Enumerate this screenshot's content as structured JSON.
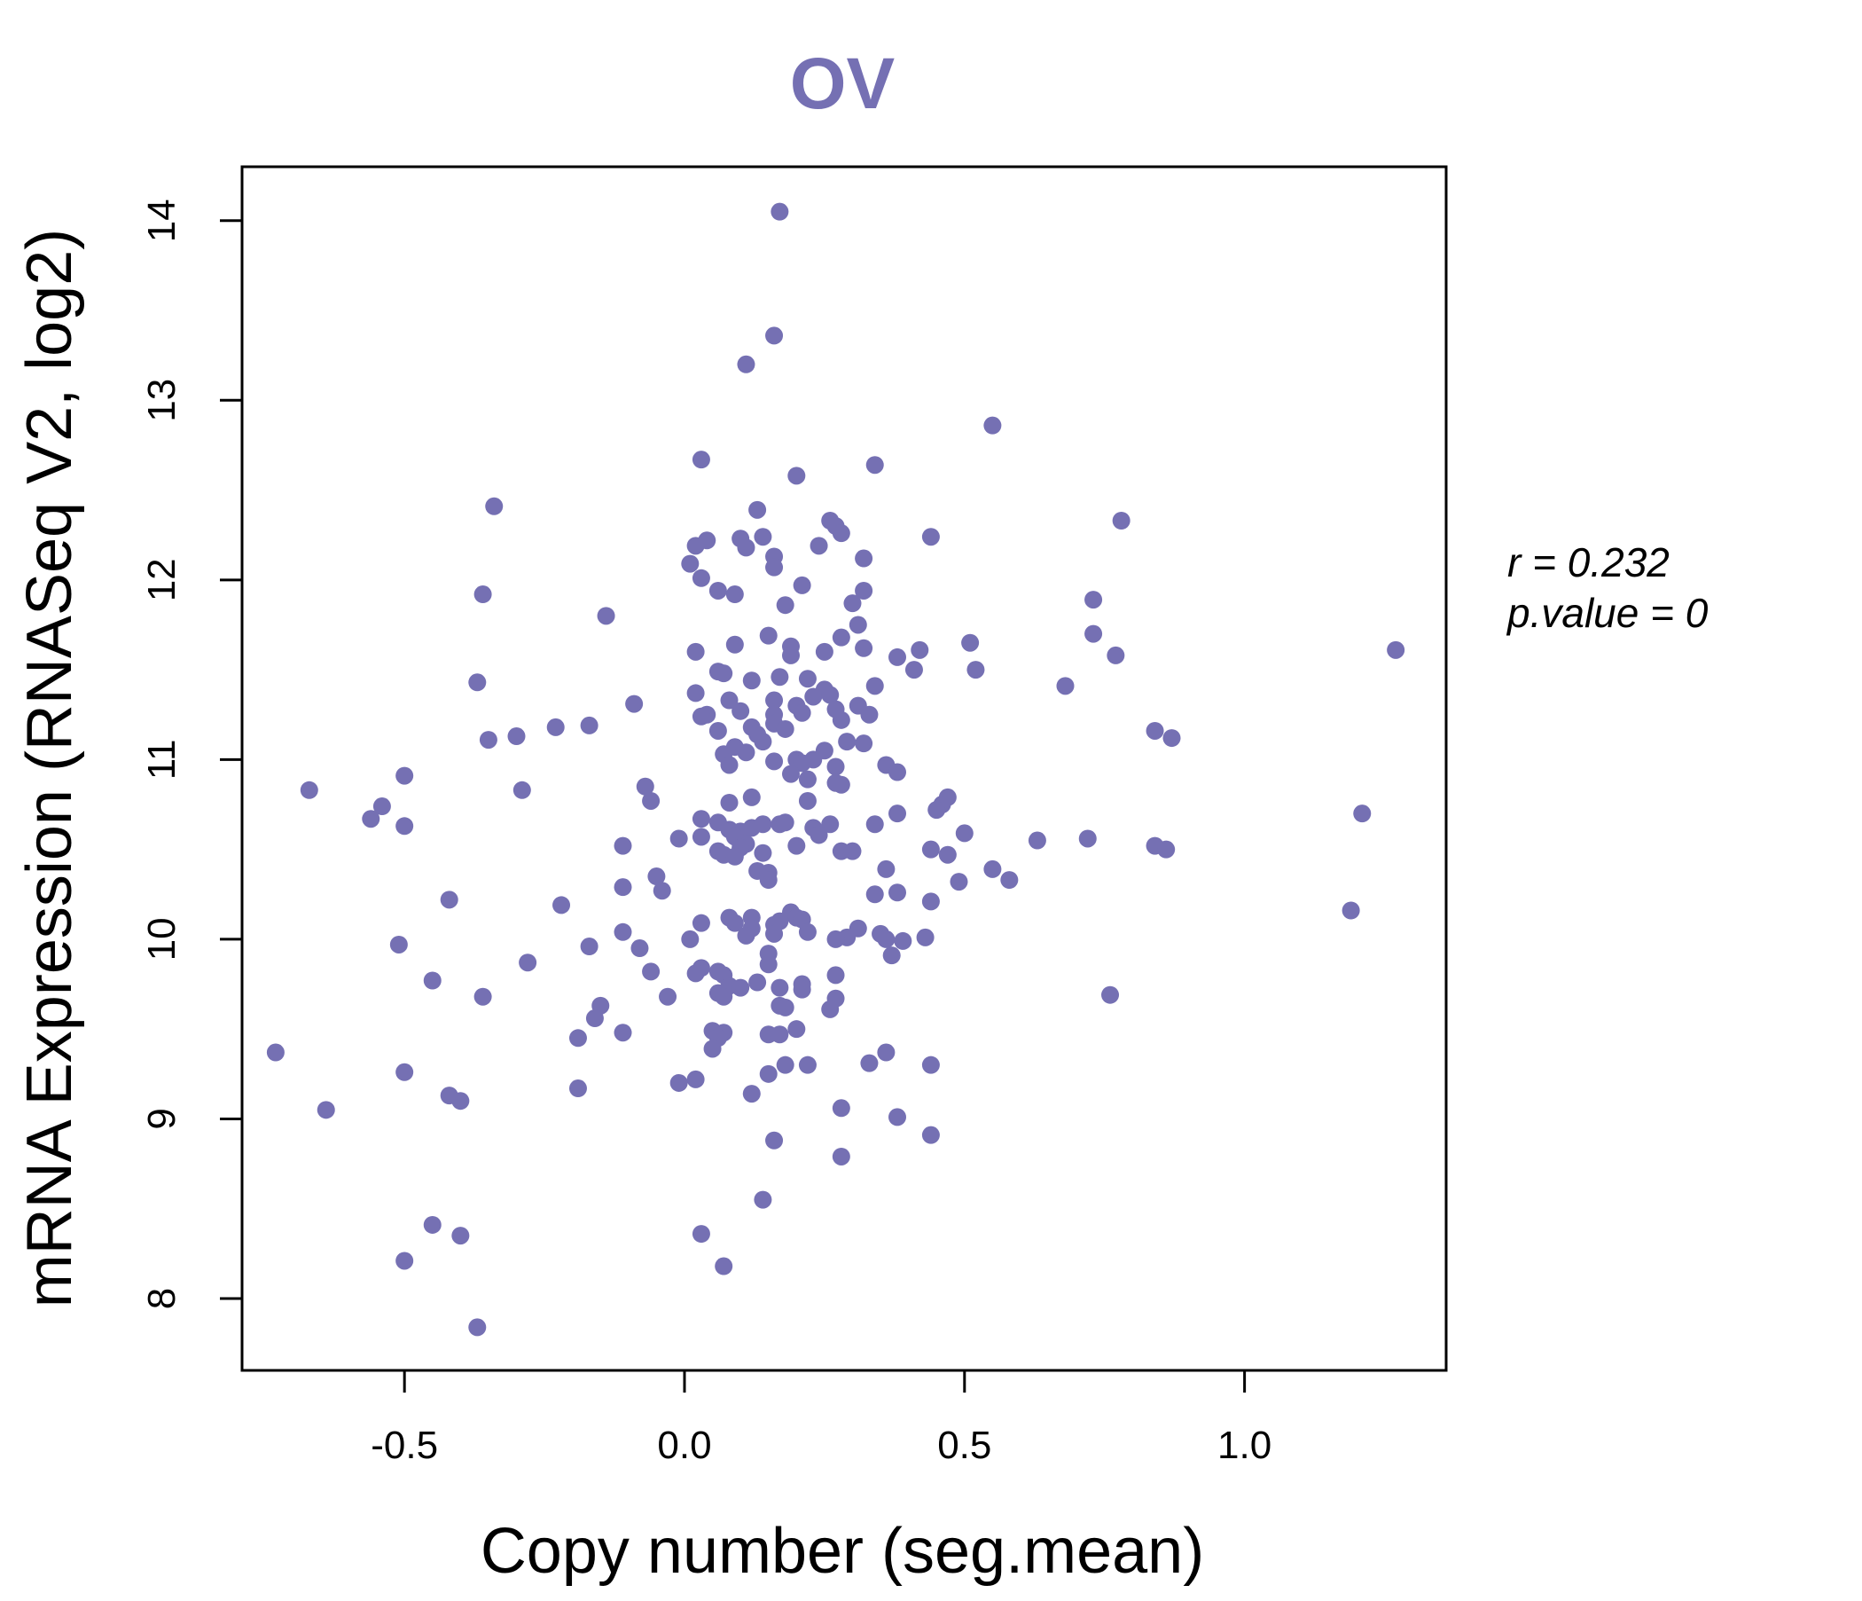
{
  "chart_data": {
    "type": "scatter",
    "title": "OV",
    "xlabel": "Copy number (seg.mean)",
    "ylabel": "mRNA Expression (RNASeq V2, log2)",
    "xlim": [
      -0.79,
      1.36
    ],
    "ylim": [
      7.6,
      14.3
    ],
    "x_ticks": [
      "-0.5",
      "0.0",
      "0.5",
      "1.0"
    ],
    "y_ticks": [
      "8",
      "9",
      "10",
      "11",
      "12",
      "13",
      "14"
    ],
    "grid": false,
    "legend": "none",
    "annotations": {
      "r": "r = 0.232",
      "p": "p.value = 0"
    },
    "colors": {
      "point": "#7570b3",
      "title": "#7570b3",
      "axis": "#000000"
    },
    "points": [
      {
        "x": 0.17,
        "y": 14.05
      },
      {
        "x": 0.16,
        "y": 13.36
      },
      {
        "x": 0.11,
        "y": 13.2
      },
      {
        "x": 0.55,
        "y": 12.86
      },
      {
        "x": 0.03,
        "y": 12.67
      },
      {
        "x": 0.34,
        "y": 12.64
      },
      {
        "x": 0.2,
        "y": 12.58
      },
      {
        "x": -0.34,
        "y": 12.41
      },
      {
        "x": 0.13,
        "y": 12.39
      },
      {
        "x": 0.26,
        "y": 12.33
      },
      {
        "x": 0.78,
        "y": 12.33
      },
      {
        "x": 0.27,
        "y": 12.3
      },
      {
        "x": 0.28,
        "y": 12.26
      },
      {
        "x": 0.14,
        "y": 12.24
      },
      {
        "x": 0.44,
        "y": 12.24
      },
      {
        "x": 0.04,
        "y": 12.22
      },
      {
        "x": 0.1,
        "y": 12.23
      },
      {
        "x": 0.02,
        "y": 12.19
      },
      {
        "x": 0.24,
        "y": 12.19
      },
      {
        "x": 0.11,
        "y": 12.18
      },
      {
        "x": 0.16,
        "y": 12.13
      },
      {
        "x": 0.32,
        "y": 12.12
      },
      {
        "x": 0.01,
        "y": 12.09
      },
      {
        "x": 0.16,
        "y": 12.07
      },
      {
        "x": 0.03,
        "y": 12.01
      },
      {
        "x": 0.21,
        "y": 11.97
      },
      {
        "x": 0.06,
        "y": 11.94
      },
      {
        "x": 0.32,
        "y": 11.94
      },
      {
        "x": -0.36,
        "y": 11.92
      },
      {
        "x": 0.09,
        "y": 11.92
      },
      {
        "x": 0.73,
        "y": 11.89
      },
      {
        "x": 0.3,
        "y": 11.87
      },
      {
        "x": 0.18,
        "y": 11.86
      },
      {
        "x": -0.14,
        "y": 11.8
      },
      {
        "x": 0.31,
        "y": 11.75
      },
      {
        "x": 0.73,
        "y": 11.7
      },
      {
        "x": 0.15,
        "y": 11.69
      },
      {
        "x": 0.28,
        "y": 11.68
      },
      {
        "x": 0.51,
        "y": 11.65
      },
      {
        "x": 0.09,
        "y": 11.64
      },
      {
        "x": 0.19,
        "y": 11.63
      },
      {
        "x": 0.32,
        "y": 11.62
      },
      {
        "x": 0.42,
        "y": 11.61
      },
      {
        "x": 0.02,
        "y": 11.6
      },
      {
        "x": 0.25,
        "y": 11.6
      },
      {
        "x": 1.27,
        "y": 11.61
      },
      {
        "x": 0.19,
        "y": 11.58
      },
      {
        "x": 0.38,
        "y": 11.57
      },
      {
        "x": 0.77,
        "y": 11.58
      },
      {
        "x": 0.52,
        "y": 11.5
      },
      {
        "x": 0.41,
        "y": 11.5
      },
      {
        "x": 0.06,
        "y": 11.49
      },
      {
        "x": 0.07,
        "y": 11.48
      },
      {
        "x": 0.17,
        "y": 11.46
      },
      {
        "x": 0.12,
        "y": 11.44
      },
      {
        "x": 0.22,
        "y": 11.45
      },
      {
        "x": -0.37,
        "y": 11.43
      },
      {
        "x": 0.34,
        "y": 11.41
      },
      {
        "x": 0.68,
        "y": 11.41
      },
      {
        "x": 0.25,
        "y": 11.39
      },
      {
        "x": 0.02,
        "y": 11.37
      },
      {
        "x": 0.23,
        "y": 11.35
      },
      {
        "x": 0.26,
        "y": 11.36
      },
      {
        "x": 0.16,
        "y": 11.33
      },
      {
        "x": 0.08,
        "y": 11.33
      },
      {
        "x": -0.09,
        "y": 11.31
      },
      {
        "x": 0.2,
        "y": 11.3
      },
      {
        "x": 0.31,
        "y": 11.3
      },
      {
        "x": 0.27,
        "y": 11.28
      },
      {
        "x": 0.1,
        "y": 11.27
      },
      {
        "x": 0.04,
        "y": 11.25
      },
      {
        "x": 0.03,
        "y": 11.24
      },
      {
        "x": 0.16,
        "y": 11.25
      },
      {
        "x": 0.21,
        "y": 11.26
      },
      {
        "x": 0.33,
        "y": 11.25
      },
      {
        "x": 0.28,
        "y": 11.22
      },
      {
        "x": 0.16,
        "y": 11.2
      },
      {
        "x": 0.12,
        "y": 11.18
      },
      {
        "x": 0.18,
        "y": 11.17
      },
      {
        "x": -0.23,
        "y": 11.18
      },
      {
        "x": -0.17,
        "y": 11.19
      },
      {
        "x": 0.06,
        "y": 11.16
      },
      {
        "x": 0.84,
        "y": 11.16
      },
      {
        "x": 0.13,
        "y": 11.14
      },
      {
        "x": -0.3,
        "y": 11.13
      },
      {
        "x": 0.87,
        "y": 11.12
      },
      {
        "x": -0.35,
        "y": 11.11
      },
      {
        "x": 0.29,
        "y": 11.1
      },
      {
        "x": 0.14,
        "y": 11.1
      },
      {
        "x": 0.32,
        "y": 11.09
      },
      {
        "x": 0.09,
        "y": 11.07
      },
      {
        "x": 0.25,
        "y": 11.05
      },
      {
        "x": 0.07,
        "y": 11.03
      },
      {
        "x": 0.11,
        "y": 11.04
      },
      {
        "x": 0.2,
        "y": 11.0
      },
      {
        "x": 0.23,
        "y": 11.0
      },
      {
        "x": 0.16,
        "y": 10.99
      },
      {
        "x": 0.21,
        "y": 10.98
      },
      {
        "x": 0.08,
        "y": 10.97
      },
      {
        "x": 0.36,
        "y": 10.97
      },
      {
        "x": 0.27,
        "y": 10.96
      },
      {
        "x": 0.38,
        "y": 10.93
      },
      {
        "x": 0.19,
        "y": 10.92
      },
      {
        "x": -0.5,
        "y": 10.91
      },
      {
        "x": 0.22,
        "y": 10.89
      },
      {
        "x": 0.27,
        "y": 10.87
      },
      {
        "x": 0.28,
        "y": 10.86
      },
      {
        "x": -0.07,
        "y": 10.85
      },
      {
        "x": -0.67,
        "y": 10.83
      },
      {
        "x": -0.29,
        "y": 10.83
      },
      {
        "x": 0.12,
        "y": 10.79
      },
      {
        "x": 0.47,
        "y": 10.79
      },
      {
        "x": 0.22,
        "y": 10.77
      },
      {
        "x": -0.06,
        "y": 10.77
      },
      {
        "x": 0.08,
        "y": 10.76
      },
      {
        "x": 0.46,
        "y": 10.75
      },
      {
        "x": -0.54,
        "y": 10.74
      },
      {
        "x": 0.45,
        "y": 10.72
      },
      {
        "x": 1.21,
        "y": 10.7
      },
      {
        "x": 0.38,
        "y": 10.7
      },
      {
        "x": 0.03,
        "y": 10.67
      },
      {
        "x": -0.56,
        "y": 10.67
      },
      {
        "x": 0.06,
        "y": 10.65
      },
      {
        "x": 0.14,
        "y": 10.64
      },
      {
        "x": 0.17,
        "y": 10.64
      },
      {
        "x": 0.18,
        "y": 10.65
      },
      {
        "x": 0.26,
        "y": 10.64
      },
      {
        "x": 0.34,
        "y": 10.64
      },
      {
        "x": -0.5,
        "y": 10.63
      },
      {
        "x": 0.12,
        "y": 10.62
      },
      {
        "x": 0.23,
        "y": 10.62
      },
      {
        "x": 0.08,
        "y": 10.61
      },
      {
        "x": 0.1,
        "y": 10.6
      },
      {
        "x": 0.5,
        "y": 10.59
      },
      {
        "x": 0.24,
        "y": 10.58
      },
      {
        "x": 0.09,
        "y": 10.57
      },
      {
        "x": 0.03,
        "y": 10.57
      },
      {
        "x": 0.72,
        "y": 10.56
      },
      {
        "x": -0.01,
        "y": 10.56
      },
      {
        "x": 0.63,
        "y": 10.55
      },
      {
        "x": 0.11,
        "y": 10.53
      },
      {
        "x": -0.11,
        "y": 10.52
      },
      {
        "x": 0.2,
        "y": 10.52
      },
      {
        "x": 0.84,
        "y": 10.52
      },
      {
        "x": 0.1,
        "y": 10.51
      },
      {
        "x": 0.86,
        "y": 10.5
      },
      {
        "x": 0.44,
        "y": 10.5
      },
      {
        "x": 0.06,
        "y": 10.49
      },
      {
        "x": 0.28,
        "y": 10.49
      },
      {
        "x": 0.3,
        "y": 10.49
      },
      {
        "x": 0.14,
        "y": 10.48
      },
      {
        "x": 0.07,
        "y": 10.47
      },
      {
        "x": 0.47,
        "y": 10.47
      },
      {
        "x": 0.09,
        "y": 10.46
      },
      {
        "x": 0.36,
        "y": 10.39
      },
      {
        "x": 0.55,
        "y": 10.39
      },
      {
        "x": 0.13,
        "y": 10.38
      },
      {
        "x": 0.15,
        "y": 10.37
      },
      {
        "x": -0.05,
        "y": 10.35
      },
      {
        "x": 0.15,
        "y": 10.33
      },
      {
        "x": 0.58,
        "y": 10.33
      },
      {
        "x": 0.49,
        "y": 10.32
      },
      {
        "x": -0.11,
        "y": 10.29
      },
      {
        "x": -0.04,
        "y": 10.27
      },
      {
        "x": 0.38,
        "y": 10.26
      },
      {
        "x": 0.34,
        "y": 10.25
      },
      {
        "x": 0.44,
        "y": 10.21
      },
      {
        "x": -0.42,
        "y": 10.22
      },
      {
        "x": -0.22,
        "y": 10.19
      },
      {
        "x": 1.19,
        "y": 10.16
      },
      {
        "x": 0.19,
        "y": 10.15
      },
      {
        "x": 0.08,
        "y": 10.12
      },
      {
        "x": 0.12,
        "y": 10.12
      },
      {
        "x": 0.2,
        "y": 10.12
      },
      {
        "x": 0.21,
        "y": 10.11
      },
      {
        "x": 0.17,
        "y": 10.1
      },
      {
        "x": 0.16,
        "y": 10.08
      },
      {
        "x": 0.03,
        "y": 10.09
      },
      {
        "x": 0.09,
        "y": 10.09
      },
      {
        "x": 0.12,
        "y": 10.06
      },
      {
        "x": 0.31,
        "y": 10.06
      },
      {
        "x": -0.11,
        "y": 10.04
      },
      {
        "x": 0.22,
        "y": 10.04
      },
      {
        "x": 0.16,
        "y": 10.03
      },
      {
        "x": 0.35,
        "y": 10.03
      },
      {
        "x": 0.11,
        "y": 10.02
      },
      {
        "x": 0.29,
        "y": 10.01
      },
      {
        "x": 0.01,
        "y": 10.0
      },
      {
        "x": 0.27,
        "y": 10.0
      },
      {
        "x": 0.36,
        "y": 10.0
      },
      {
        "x": 0.39,
        "y": 9.99
      },
      {
        "x": 0.43,
        "y": 10.01
      },
      {
        "x": -0.51,
        "y": 9.97
      },
      {
        "x": -0.17,
        "y": 9.96
      },
      {
        "x": -0.08,
        "y": 9.95
      },
      {
        "x": 0.15,
        "y": 9.92
      },
      {
        "x": 0.37,
        "y": 9.91
      },
      {
        "x": -0.28,
        "y": 9.87
      },
      {
        "x": 0.15,
        "y": 9.86
      },
      {
        "x": 0.03,
        "y": 9.84
      },
      {
        "x": -0.06,
        "y": 9.82
      },
      {
        "x": 0.06,
        "y": 9.82
      },
      {
        "x": 0.02,
        "y": 9.81
      },
      {
        "x": 0.07,
        "y": 9.8
      },
      {
        "x": 0.27,
        "y": 9.8
      },
      {
        "x": -0.45,
        "y": 9.77
      },
      {
        "x": 0.13,
        "y": 9.76
      },
      {
        "x": 0.21,
        "y": 9.75
      },
      {
        "x": 0.08,
        "y": 9.74
      },
      {
        "x": 0.17,
        "y": 9.73
      },
      {
        "x": 0.1,
        "y": 9.73
      },
      {
        "x": 0.21,
        "y": 9.72
      },
      {
        "x": 0.06,
        "y": 9.7
      },
      {
        "x": 0.07,
        "y": 9.68
      },
      {
        "x": -0.36,
        "y": 9.68
      },
      {
        "x": -0.03,
        "y": 9.68
      },
      {
        "x": 0.76,
        "y": 9.69
      },
      {
        "x": 0.27,
        "y": 9.67
      },
      {
        "x": -0.15,
        "y": 9.63
      },
      {
        "x": 0.17,
        "y": 9.63
      },
      {
        "x": 0.18,
        "y": 9.62
      },
      {
        "x": 0.26,
        "y": 9.61
      },
      {
        "x": -0.16,
        "y": 9.56
      },
      {
        "x": 0.2,
        "y": 9.5
      },
      {
        "x": 0.05,
        "y": 9.49
      },
      {
        "x": 0.07,
        "y": 9.48
      },
      {
        "x": -0.11,
        "y": 9.48
      },
      {
        "x": 0.15,
        "y": 9.47
      },
      {
        "x": 0.17,
        "y": 9.47
      },
      {
        "x": 0.06,
        "y": 9.45
      },
      {
        "x": -0.19,
        "y": 9.45
      },
      {
        "x": 0.05,
        "y": 9.39
      },
      {
        "x": -0.73,
        "y": 9.37
      },
      {
        "x": 0.36,
        "y": 9.37
      },
      {
        "x": 0.33,
        "y": 9.31
      },
      {
        "x": 0.44,
        "y": 9.3
      },
      {
        "x": 0.18,
        "y": 9.3
      },
      {
        "x": 0.22,
        "y": 9.3
      },
      {
        "x": -0.5,
        "y": 9.26
      },
      {
        "x": 0.15,
        "y": 9.25
      },
      {
        "x": 0.02,
        "y": 9.22
      },
      {
        "x": -0.01,
        "y": 9.2
      },
      {
        "x": -0.19,
        "y": 9.17
      },
      {
        "x": 0.12,
        "y": 9.14
      },
      {
        "x": -0.42,
        "y": 9.13
      },
      {
        "x": -0.4,
        "y": 9.1
      },
      {
        "x": 0.28,
        "y": 9.06
      },
      {
        "x": -0.64,
        "y": 9.05
      },
      {
        "x": 0.38,
        "y": 9.01
      },
      {
        "x": 0.44,
        "y": 8.91
      },
      {
        "x": 0.16,
        "y": 8.88
      },
      {
        "x": 0.28,
        "y": 8.79
      },
      {
        "x": 0.14,
        "y": 8.55
      },
      {
        "x": -0.45,
        "y": 8.41
      },
      {
        "x": 0.03,
        "y": 8.36
      },
      {
        "x": -0.4,
        "y": 8.35
      },
      {
        "x": -0.5,
        "y": 8.21
      },
      {
        "x": 0.07,
        "y": 8.18
      },
      {
        "x": -0.37,
        "y": 7.84
      }
    ]
  }
}
